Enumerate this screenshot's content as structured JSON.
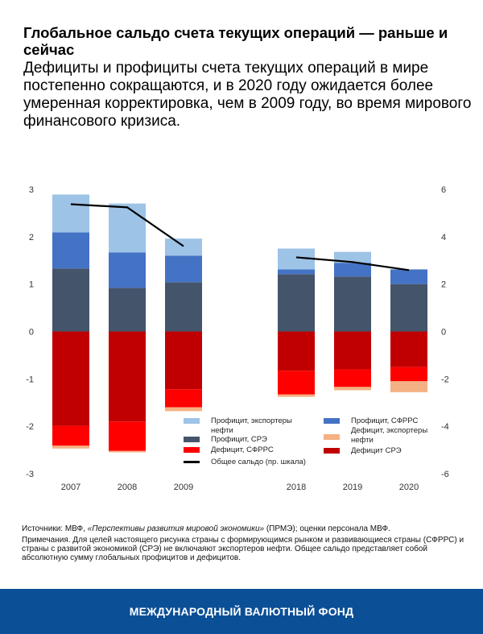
{
  "title": "Глобальное сальдо счета текущих операций — раньше и сейчас",
  "subtitle": "Дефициты и профициты счета текущих операций в мире постепенно сокращаются, и в 2020 году ожидается более умеренная корректировка, чем в 2009 году, во время мирового финансового кризиса.",
  "chart_data": {
    "type": "bar",
    "stacked": true,
    "categories": [
      "2007",
      "2008",
      "2009",
      "2018",
      "2019",
      "2020"
    ],
    "left_axis": {
      "range": [
        -3,
        3
      ],
      "ticks": [
        "3",
        "2",
        "1",
        "0",
        "-1",
        "-2",
        "-3"
      ]
    },
    "right_axis": {
      "range": [
        -6,
        6
      ],
      "ticks": [
        "6",
        "4",
        "2",
        "0",
        "-2",
        "-4",
        "-6"
      ]
    },
    "grid": false,
    "legend_placement": "bottom-right",
    "series": [
      {
        "name": "Профицит, СРЭ",
        "color": "#44546a",
        "values": [
          1.33,
          0.92,
          1.04,
          1.21,
          1.16,
          1.0
        ]
      },
      {
        "name": "Профицит, СФРРС",
        "color": "#4472c4",
        "values": [
          0.76,
          0.75,
          0.56,
          0.1,
          0.29,
          0.31
        ]
      },
      {
        "name": "Профицит, экспортеры нефти",
        "color": "#9dc3e6",
        "values": [
          0.8,
          1.03,
          0.36,
          0.44,
          0.23,
          0.0
        ]
      },
      {
        "name": "Дефицит СРЭ",
        "color": "#c00000",
        "values": [
          -1.99,
          -1.9,
          -1.22,
          -0.83,
          -0.8,
          -0.75
        ]
      },
      {
        "name": "Дефицит, СФРРС",
        "color": "#ff0000",
        "values": [
          -0.42,
          -0.62,
          -0.38,
          -0.5,
          -0.37,
          -0.3
        ]
      },
      {
        "name": "Дефицит, экспортеры нефти",
        "color": "#f4b183",
        "values": [
          -0.06,
          -0.03,
          -0.08,
          -0.05,
          -0.07,
          -0.23
        ]
      }
    ],
    "line": {
      "name": "Общее сальдо (пр. шкала)",
      "color": "#000000",
      "axis": "right",
      "values": [
        5.37,
        5.24,
        3.6,
        3.13,
        2.93,
        2.59
      ]
    }
  },
  "legend": [
    {
      "label": "Профицит, экспортеры нефти",
      "color": "#9dc3e6"
    },
    {
      "label": "Профицит, СРЭ",
      "color": "#44546a"
    },
    {
      "label": "Дефицит, СФРРС",
      "color": "#ff0000"
    },
    {
      "label": "Общее сальдо (пр. шкала)",
      "color": "#000000"
    },
    {
      "label": "Профицит, СФРРС",
      "color": "#4472c4"
    },
    {
      "label": "Дефицит, экспортеры нефти",
      "color": "#f4b183"
    },
    {
      "label": "Дефицит СРЭ",
      "color": "#c00000"
    }
  ],
  "notes": {
    "source_prefix": "Источники: МВФ, ",
    "source_italic": "«Перспективы развития мировой экономики»",
    "source_suffix": " (ПРМЭ); оценки персонала МВФ.",
    "note": "Примечания. Для целей настоящего рисунка страны с формирующимся рынком и развивающиеся страны (СФРРС) и страны с развитой экономикой (СРЭ) не включаяют экспортеров нефти. Общее сальдо представляет собой абсолютную сумму глобальных профицитов и дефицитов."
  },
  "footer": "МЕЖДУНАРОДНЫЙ ВАЛЮТНЫЙ ФОНД"
}
